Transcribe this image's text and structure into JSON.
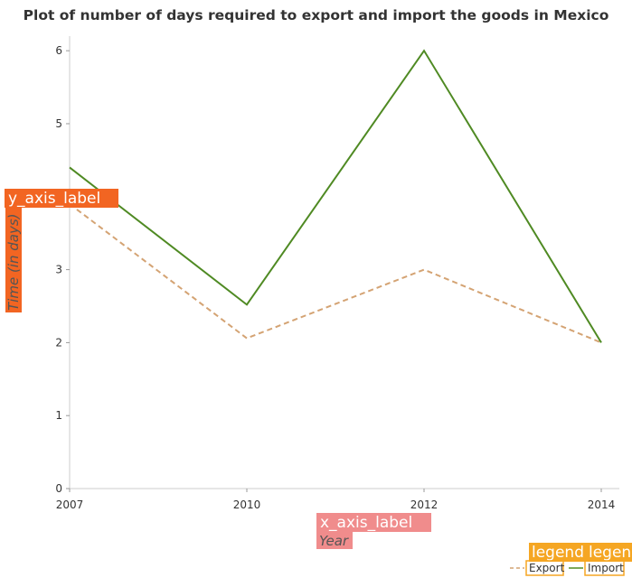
{
  "chart_data": {
    "type": "line",
    "title": "Plot of number of days required to export and import the goods in Mexico",
    "xlabel": "Year",
    "ylabel": "Time (in days)",
    "x_axis_tag": "x_axis_label",
    "y_axis_tag": "y_axis_label",
    "legend_tags": [
      "legend",
      "legend"
    ],
    "categories": [
      "2007",
      "2010",
      "2012",
      "2014"
    ],
    "ylim": [
      0,
      6.2
    ],
    "yticks": [
      "0",
      "1",
      "2",
      "3",
      "4",
      "5",
      "6"
    ],
    "series": [
      {
        "name": "Export",
        "values": [
          3.9,
          2.06,
          3.0,
          2.0
        ],
        "color": "#d4a373",
        "dash": true
      },
      {
        "name": "Import",
        "values": [
          4.4,
          2.52,
          6.0,
          2.0
        ],
        "color": "#4f8a23",
        "dash": false
      }
    ],
    "legend_position": "bottom-right",
    "grid": false
  },
  "colors": {
    "ylabel_tag_bg": "#f26522",
    "xlabel_tag_bg": "#f08c8c",
    "legend_tag_bg": "#f5a623"
  }
}
